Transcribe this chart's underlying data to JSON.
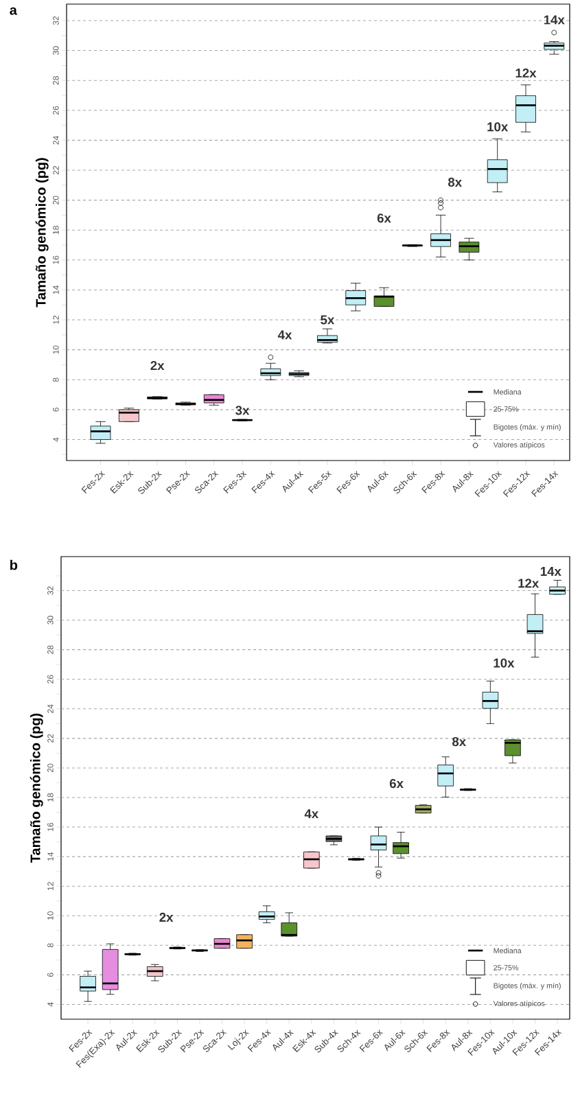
{
  "chart_data": [
    {
      "type": "box",
      "title": "a",
      "ylabel": "Tamaño genómico (pg)",
      "categories": [
        "Fes-2x",
        "Esk-2x",
        "Sub-2x",
        "Pse-2x",
        "Sca-2x",
        "Fes-3x",
        "Fes-4x",
        "Aul-4x",
        "Fes-5x",
        "Fes-6x",
        "Aul-6x",
        "Sch-6x",
        "Fes-8x",
        "Aul-8x",
        "Fes-10x",
        "Fes-12x",
        "Fes-14x"
      ],
      "colors": [
        "#c2eef5",
        "#f5c6cb",
        "#f5c6cb",
        "#f5c6cb",
        "#e987d3",
        "#c2eef5",
        "#c2eef5",
        "#c2eef5",
        "#c2eef5",
        "#c2eef5",
        "#5c8f2e",
        "#6e6e6e",
        "#c2eef5",
        "#5c8f2e",
        "#c2eef5",
        "#c2eef5",
        "#c2eef5"
      ],
      "boxes": [
        {
          "low": 3.75,
          "q1": 4.0,
          "median": 4.55,
          "q3": 4.9,
          "high": 5.2
        },
        {
          "low": 5.2,
          "q1": 5.2,
          "median": 5.8,
          "q3": 6.0,
          "high": 6.1
        },
        {
          "low": 6.7,
          "q1": 6.72,
          "median": 6.78,
          "q3": 6.85,
          "high": 6.87
        },
        {
          "low": 6.3,
          "q1": 6.32,
          "median": 6.38,
          "q3": 6.45,
          "high": 6.5
        },
        {
          "low": 6.3,
          "q1": 6.45,
          "median": 6.65,
          "q3": 7.0,
          "high": 7.0
        },
        {
          "low": 5.25,
          "q1": 5.28,
          "median": 5.3,
          "q3": 5.33,
          "high": 5.35
        },
        {
          "low": 8.0,
          "q1": 8.28,
          "median": 8.43,
          "q3": 8.73,
          "high": 9.1,
          "outliers": [
            9.5
          ]
        },
        {
          "low": 8.2,
          "q1": 8.28,
          "median": 8.38,
          "q3": 8.48,
          "high": 8.6
        },
        {
          "low": 10.45,
          "q1": 10.5,
          "median": 10.65,
          "q3": 10.95,
          "high": 11.4
        },
        {
          "low": 12.6,
          "q1": 13.0,
          "median": 13.45,
          "q3": 13.95,
          "high": 14.45
        },
        {
          "low": 12.9,
          "q1": 12.9,
          "median": 13.55,
          "q3": 13.6,
          "high": 14.15
        },
        {
          "low": 16.9,
          "q1": 16.93,
          "median": 16.97,
          "q3": 17.0,
          "high": 17.02
        },
        {
          "low": 16.2,
          "q1": 16.9,
          "median": 17.33,
          "q3": 17.75,
          "high": 19.0,
          "outliers": [
            19.5,
            19.8,
            20.0
          ]
        },
        {
          "low": 16.0,
          "q1": 16.52,
          "median": 16.92,
          "q3": 17.2,
          "high": 17.45
        },
        {
          "low": 20.55,
          "q1": 21.17,
          "median": 22.08,
          "q3": 22.7,
          "high": 24.1
        },
        {
          "low": 24.56,
          "q1": 25.2,
          "median": 26.34,
          "q3": 26.98,
          "high": 27.7
        },
        {
          "low": 29.75,
          "q1": 30.07,
          "median": 30.32,
          "q3": 30.5,
          "high": 30.6,
          "outliers": [
            31.2
          ]
        }
      ],
      "ylim": [
        2.6,
        33.1
      ],
      "yticks": [
        {
          "value": 3,
          "label": null
        },
        4,
        {
          "value": 5,
          "label": null
        },
        6,
        {
          "value": 7,
          "label": null
        },
        8,
        {
          "value": 9,
          "label": null
        },
        10,
        {
          "value": 11,
          "label": null
        },
        12,
        {
          "value": 13,
          "label": null
        },
        14,
        {
          "value": 15,
          "label": null
        },
        16,
        {
          "value": 17,
          "label": null
        },
        18,
        {
          "value": 19,
          "label": null
        },
        20,
        {
          "value": 21,
          "label": null
        },
        22,
        {
          "value": 23,
          "label": null
        },
        24,
        {
          "value": 25,
          "label": null
        },
        26,
        {
          "value": 27,
          "label": null
        },
        28,
        {
          "value": 29,
          "label": null
        },
        30,
        {
          "value": 31,
          "label": null
        },
        32
      ],
      "grid": "y",
      "annotations": [
        "2x",
        "3x",
        "4x",
        "5x",
        "6x",
        "8x",
        "10x",
        "12x",
        "14x",
        "Mediana",
        "25-75%",
        "Bigotes (máx. y mín)",
        "Valores atípicos"
      ]
    },
    {
      "type": "box",
      "title": "b",
      "ylabel": "Tamaño genómico (pg)",
      "categories": [
        "Fes-2x",
        "Fes(Exa)-2x",
        "Aul-2x",
        "Esk-2x",
        "Sub-2x",
        "Pse-2x",
        "Sca-2x",
        "Loj-2x",
        "Fes-4x",
        "Aul-4x",
        "Esk-4x",
        "Sub-4x",
        "Sch-4x",
        "Fes-6x",
        "Aul-6x",
        "Sch-6x",
        "Fes-8x",
        "Aul-8x",
        "Fes-10x",
        "Aul-10x",
        "Fes-12x",
        "Fes-14x"
      ],
      "colors": [
        "#c2eef5",
        "#e58ee0",
        "#6e6e6e",
        "#f5c6cb",
        "#6e6e6e",
        "#6e6e6e",
        "#e987d3",
        "#f2b35a",
        "#c2eef5",
        "#5c8f2e",
        "#f5c6cb",
        "#6e6e6e",
        "#6e6e6e",
        "#c2eef5",
        "#5c8f2e",
        "#a3a865",
        "#c2eef5",
        "#6e6e6e",
        "#c2eef5",
        "#5c8f2e",
        "#c2eef5",
        "#c2eef5"
      ],
      "boxes": [
        {
          "low": 4.2,
          "q1": 4.9,
          "median": 5.15,
          "q3": 5.9,
          "high": 6.25
        },
        {
          "low": 4.68,
          "q1": 5.0,
          "median": 5.42,
          "q3": 7.72,
          "high": 8.1
        },
        {
          "low": 7.33,
          "q1": 7.37,
          "median": 7.4,
          "q3": 7.43,
          "high": 7.46
        },
        {
          "low": 5.6,
          "q1": 5.9,
          "median": 6.25,
          "q3": 6.55,
          "high": 6.7
        },
        {
          "low": 7.75,
          "q1": 7.78,
          "median": 7.82,
          "q3": 7.85,
          "high": 7.88
        },
        {
          "low": 7.58,
          "q1": 7.62,
          "median": 7.65,
          "q3": 7.68,
          "high": 7.7
        },
        {
          "low": 7.8,
          "q1": 7.8,
          "median": 8.1,
          "q3": 8.45,
          "high": 8.45
        },
        {
          "low": 7.8,
          "q1": 7.8,
          "median": 8.33,
          "q3": 8.72,
          "high": 8.72
        },
        {
          "low": 9.52,
          "q1": 9.75,
          "median": 9.95,
          "q3": 10.27,
          "high": 10.67
        },
        {
          "low": 8.62,
          "q1": 8.62,
          "median": 8.7,
          "q3": 9.52,
          "high": 10.2
        },
        {
          "low": 13.22,
          "q1": 13.22,
          "median": 13.82,
          "q3": 14.32,
          "high": 14.32
        },
        {
          "low": 14.8,
          "q1": 15.02,
          "median": 15.2,
          "q3": 15.4,
          "high": 15.4
        },
        {
          "low": 13.75,
          "q1": 13.78,
          "median": 13.82,
          "q3": 13.85,
          "high": 13.88
        },
        {
          "low": 13.3,
          "q1": 14.45,
          "median": 14.82,
          "q3": 15.4,
          "high": 16.0,
          "outliers": [
            12.7,
            12.9
          ]
        },
        {
          "low": 13.9,
          "q1": 14.2,
          "median": 14.7,
          "q3": 14.95,
          "high": 15.65
        },
        {
          "low": 16.95,
          "q1": 16.95,
          "median": 17.2,
          "q3": 17.47,
          "high": 17.5
        },
        {
          "low": 18.03,
          "q1": 18.78,
          "median": 19.63,
          "q3": 20.2,
          "high": 20.75
        },
        {
          "low": 18.47,
          "q1": 18.5,
          "median": 18.53,
          "q3": 18.56,
          "high": 18.6
        },
        {
          "low": 23.0,
          "q1": 24.03,
          "median": 24.53,
          "q3": 25.13,
          "high": 25.88
        },
        {
          "low": 20.33,
          "q1": 20.83,
          "median": 21.7,
          "q3": 21.9,
          "high": 21.9
        },
        {
          "low": 27.5,
          "q1": 29.1,
          "median": 29.25,
          "q3": 30.38,
          "high": 31.78
        },
        {
          "low": 31.75,
          "q1": 31.75,
          "median": 32.0,
          "q3": 32.25,
          "high": 32.7
        }
      ],
      "ylim": [
        3.0,
        34.3
      ],
      "yticks": [
        4,
        {
          "value": 5,
          "label": null
        },
        6,
        {
          "value": 7,
          "label": null
        },
        8,
        {
          "value": 9,
          "label": null
        },
        10,
        {
          "value": 11,
          "label": null
        },
        12,
        {
          "value": 13,
          "label": null
        },
        14,
        {
          "value": 15,
          "label": null
        },
        16,
        {
          "value": 17,
          "label": null
        },
        18,
        {
          "value": 19,
          "label": null
        },
        20,
        {
          "value": 21,
          "label": null
        },
        22,
        {
          "value": 23,
          "label": null
        },
        24,
        {
          "value": 25,
          "label": null
        },
        26,
        {
          "value": 27,
          "label": null
        },
        28,
        {
          "value": 29,
          "label": null
        },
        30,
        {
          "value": 31,
          "label": null
        },
        32,
        {
          "value": 33,
          "label": null
        }
      ],
      "grid": "y",
      "annotations": [
        "2x",
        "4x",
        "6x",
        "8x",
        "10x",
        "12x",
        "14x",
        "Mediana",
        "25-75%",
        "Bigotes (máx. y mín)",
        "Valores atípicos"
      ]
    }
  ]
}
